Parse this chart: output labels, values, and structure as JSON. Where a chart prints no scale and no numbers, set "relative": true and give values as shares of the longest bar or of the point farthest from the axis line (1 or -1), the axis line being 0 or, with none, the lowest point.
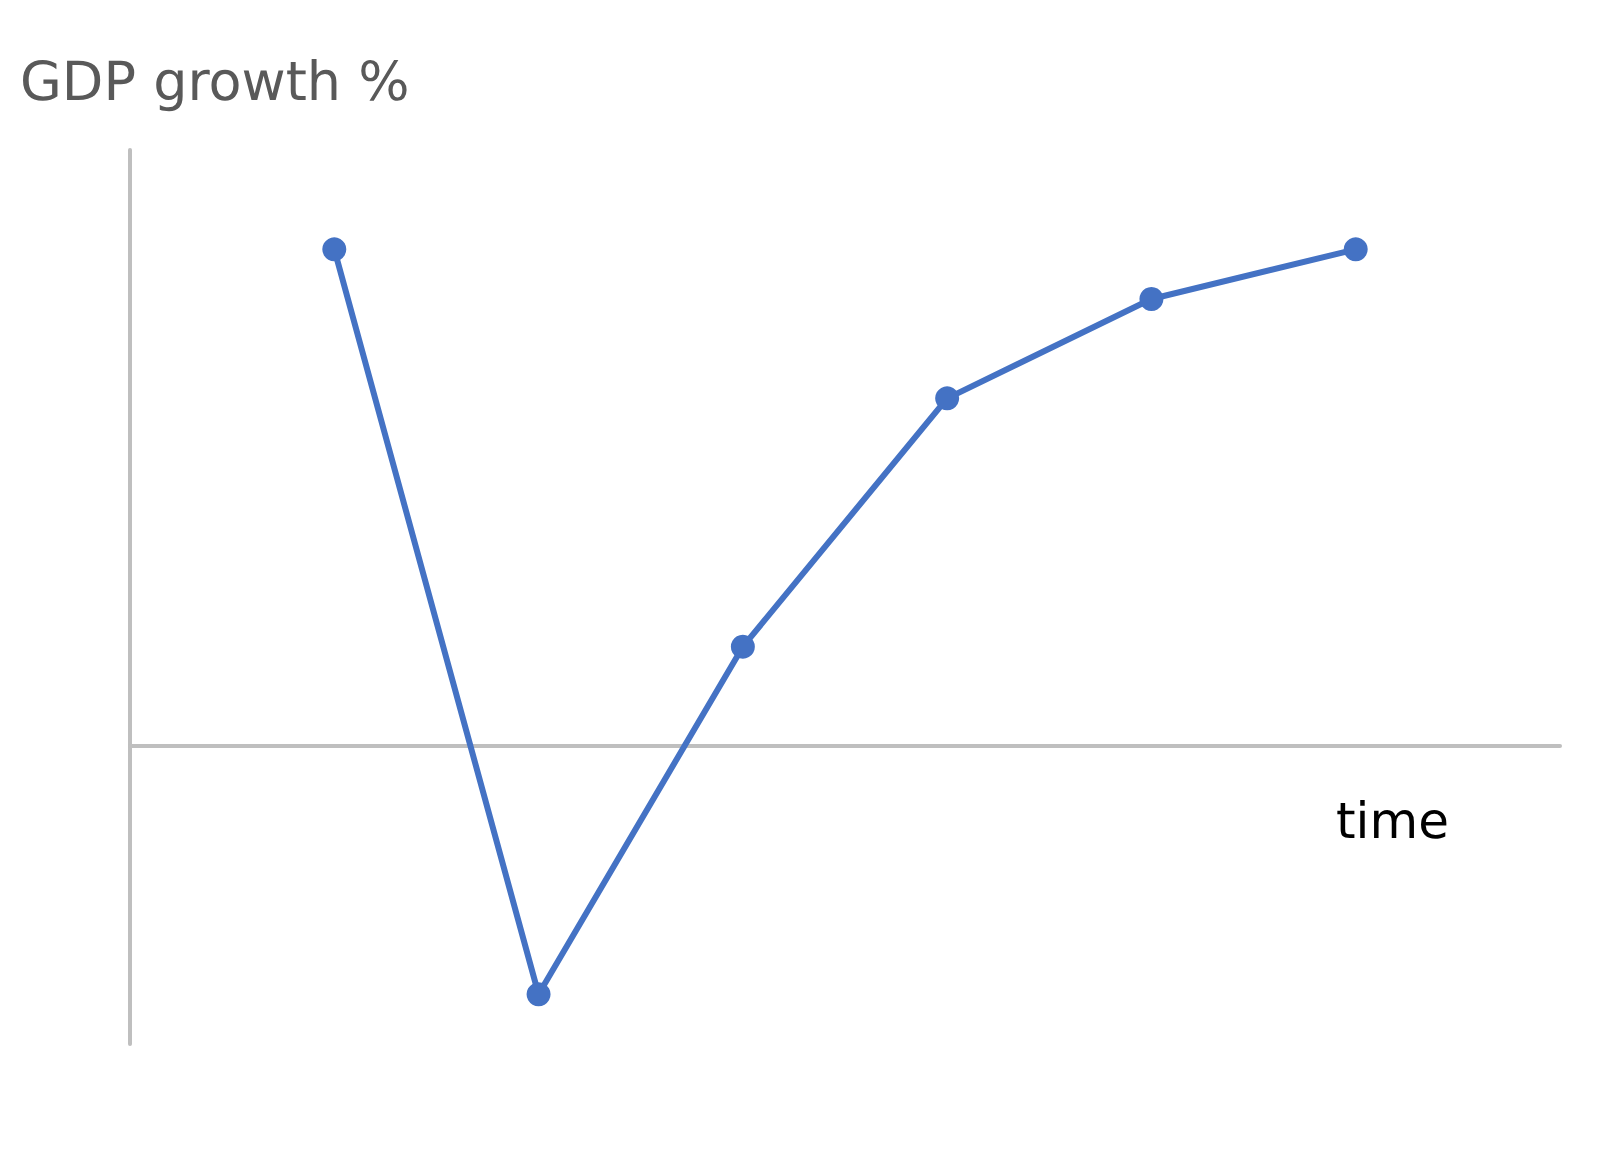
{
  "chart_data": {
    "type": "line",
    "relative": true,
    "ylabel": "GDP growth %",
    "xlabel": "time",
    "categories": [
      null,
      null,
      null,
      null,
      null,
      null
    ],
    "series": [
      {
        "color": "#4472c4",
        "values": [
          1,
          -0.5,
          0.2,
          0.7,
          0.9,
          1
        ]
      }
    ],
    "marker": "circle",
    "line_style": "solid",
    "grid": false
  }
}
